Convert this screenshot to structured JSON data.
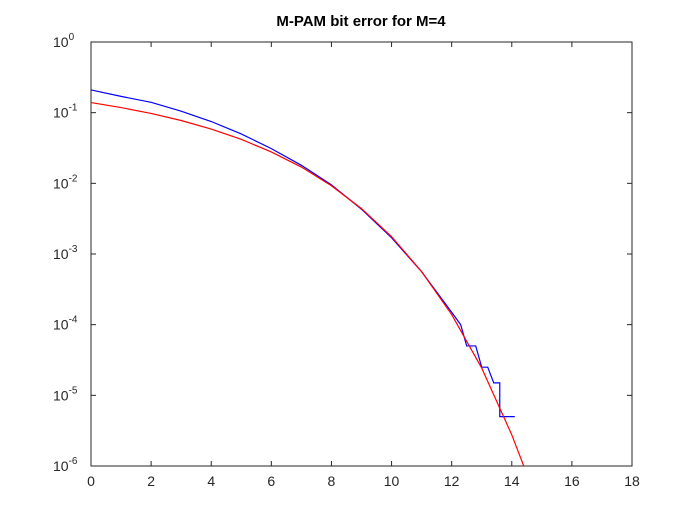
{
  "chart_data": {
    "type": "line",
    "title": "M-PAM bit error for M=4",
    "xlim": [
      0,
      18
    ],
    "xticks": [
      0,
      2,
      4,
      6,
      8,
      10,
      12,
      14,
      16,
      18
    ],
    "ylim": [
      1e-06,
      1
    ],
    "log_y": true,
    "yticks": [
      {
        "value": 1e-06,
        "label": "10",
        "exponent": "-6"
      },
      {
        "value": 1e-05,
        "label": "10",
        "exponent": "-5"
      },
      {
        "value": 0.0001,
        "label": "10",
        "exponent": "-4"
      },
      {
        "value": 0.001,
        "label": "10",
        "exponent": "-3"
      },
      {
        "value": 0.01,
        "label": "10",
        "exponent": "-2"
      },
      {
        "value": 0.1,
        "label": "10",
        "exponent": "-1"
      },
      {
        "value": 1,
        "label": "10",
        "exponent": "0"
      }
    ],
    "series": [
      {
        "color": "#0000ff",
        "x": [
          0,
          1,
          2,
          3,
          4,
          5,
          6,
          7,
          8,
          9,
          10,
          11,
          12,
          12.3,
          12.5,
          12.8,
          13,
          13.2,
          13.4,
          13.4,
          13.6,
          13.6,
          14.1
        ],
        "values": [
          0.21,
          0.17,
          0.14,
          0.105,
          0.075,
          0.05,
          0.031,
          0.018,
          0.0095,
          0.0043,
          0.0017,
          0.00056,
          0.00015,
          0.0001,
          5e-05,
          5e-05,
          2.5e-05,
          2.5e-05,
          1.5e-05,
          1.5e-05,
          1.5e-05,
          5e-06,
          5e-06
        ]
      },
      {
        "color": "#ff0000",
        "x": [
          0,
          1,
          2,
          3,
          4,
          5,
          6,
          7,
          8,
          9,
          10,
          11,
          12,
          13,
          14,
          14.5
        ],
        "values": [
          0.139,
          0.118,
          0.0975,
          0.0775,
          0.0586,
          0.0419,
          0.0278,
          0.017,
          0.00924,
          0.00439,
          0.00176,
          0.000564,
          0.000139,
          2.43e-05,
          2.76e-06,
          7.7e-07
        ]
      }
    ]
  }
}
